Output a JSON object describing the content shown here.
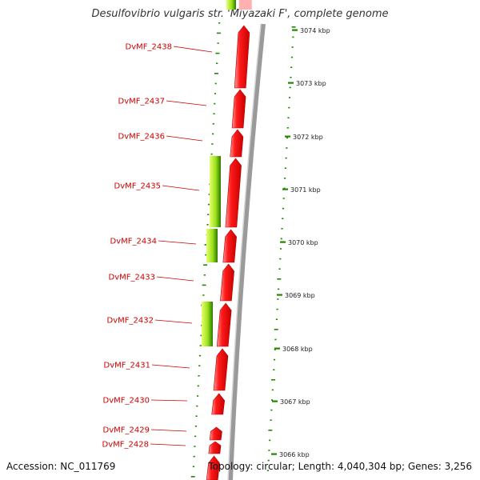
{
  "title": "Desulfovibrio vulgaris str. 'Miyazaki F', complete genome",
  "accession_label": "Accession: NC_011769",
  "topology_label": "Topology: circular; Length: 4,040,304 bp; Genes: 3,256",
  "colors": {
    "gene_red": "#ff1a1a",
    "gene_dark_red": "#b00000",
    "green_light": "#ccff33",
    "green_dark": "#2a7a00",
    "backbone": "#8a8a8a",
    "dot_green": "#1f8a00",
    "label_red": "#cc0000"
  },
  "genes": [
    {
      "label": "DvMF_2438"
    },
    {
      "label": "DvMF_2437"
    },
    {
      "label": "DvMF_2436"
    },
    {
      "label": "DvMF_2435"
    },
    {
      "label": "DvMF_2434"
    },
    {
      "label": "DvMF_2433"
    },
    {
      "label": "DvMF_2432"
    },
    {
      "label": "DvMF_2431"
    },
    {
      "label": "DvMF_2430"
    },
    {
      "label": "DvMF_2429"
    },
    {
      "label": "DvMF_2428"
    }
  ],
  "kbp_ticks": [
    "3074 kbp",
    "3073 kbp",
    "3072 kbp",
    "3071 kbp",
    "3070 kbp",
    "3069 kbp",
    "3068 kbp",
    "3067 kbp",
    "3066 kbp"
  ]
}
